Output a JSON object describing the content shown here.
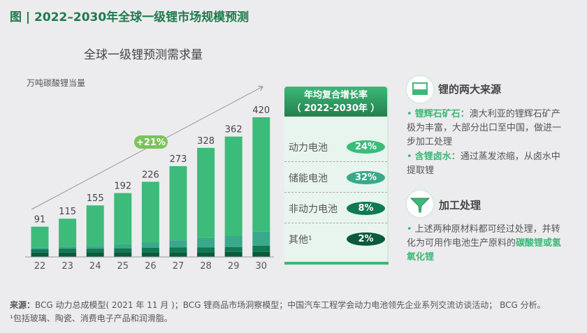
{
  "title": "图 | 2022–2030年全球一级锂市场规模预测",
  "chart_data": {
    "type": "bar",
    "stacked": true,
    "title": "全球一级锂预测需求量",
    "ylabel": "万吨碳酸锂当量",
    "categories": [
      "22",
      "23",
      "24",
      "25",
      "26",
      "27",
      "28",
      "29",
      "30"
    ],
    "totals": [
      91,
      115,
      155,
      192,
      226,
      273,
      328,
      362,
      420
    ],
    "series": [
      {
        "name": "其他¹",
        "color": "#0a5a3c",
        "values": [
          13,
          13,
          14,
          14,
          14,
          14,
          14,
          15,
          15
        ]
      },
      {
        "name": "非动力电池",
        "color": "#0f7a52",
        "values": [
          10,
          12,
          11,
          12,
          14,
          15,
          15,
          15,
          19
        ]
      },
      {
        "name": "储能电池",
        "color": "#3aa88a",
        "values": [
          5,
          6,
          8,
          12,
          16,
          21,
          28,
          33,
          42
        ]
      },
      {
        "name": "动力电池",
        "color": "#3dbb7a",
        "values": [
          63,
          84,
          122,
          154,
          182,
          223,
          271,
          299,
          344
        ]
      }
    ],
    "ylim": [
      0,
      460
    ],
    "annotation": "+21%"
  },
  "cagr": {
    "header1": "年均复合增长率",
    "header2": "（ 2022-2030年 ）",
    "rows": [
      {
        "label": "动力电池",
        "value": "24%",
        "color": "#3dbb7a"
      },
      {
        "label": "储能电池",
        "value": "32%",
        "color": "#3aa88a"
      },
      {
        "label": "非动力电池",
        "value": "8%",
        "color": "#0f7a52"
      },
      {
        "label": "其他¹",
        "value": "2%",
        "color": "#0a5a3c"
      }
    ]
  },
  "sources": {
    "heading": "锂的两大来源",
    "b1_key": "锂辉石矿石：",
    "b1_text": "澳大利亚的锂辉石矿产极为丰富，大部分出口至中国，做进一步加工处理",
    "b2_key": "含锂卤水：",
    "b2_text": "通过蒸发浓缩，从卤水中提取锂"
  },
  "processing": {
    "heading": "加工处理",
    "text": "上述两种原材料都可经过处理，并转化为可用作电池生产原料的",
    "highlight": "碳酸锂或氢氧化锂"
  },
  "footer": {
    "source_label": "来源：",
    "source": "BCG 动力总成模型( 2021 年 11 月 )；BCG 锂商品市场洞察模型；中国汽车工程学会动力电池领先企业系列交流访谈活动； BCG 分析。",
    "note": "¹包括玻璃、陶瓷、消费电子产品和润滑脂。"
  }
}
